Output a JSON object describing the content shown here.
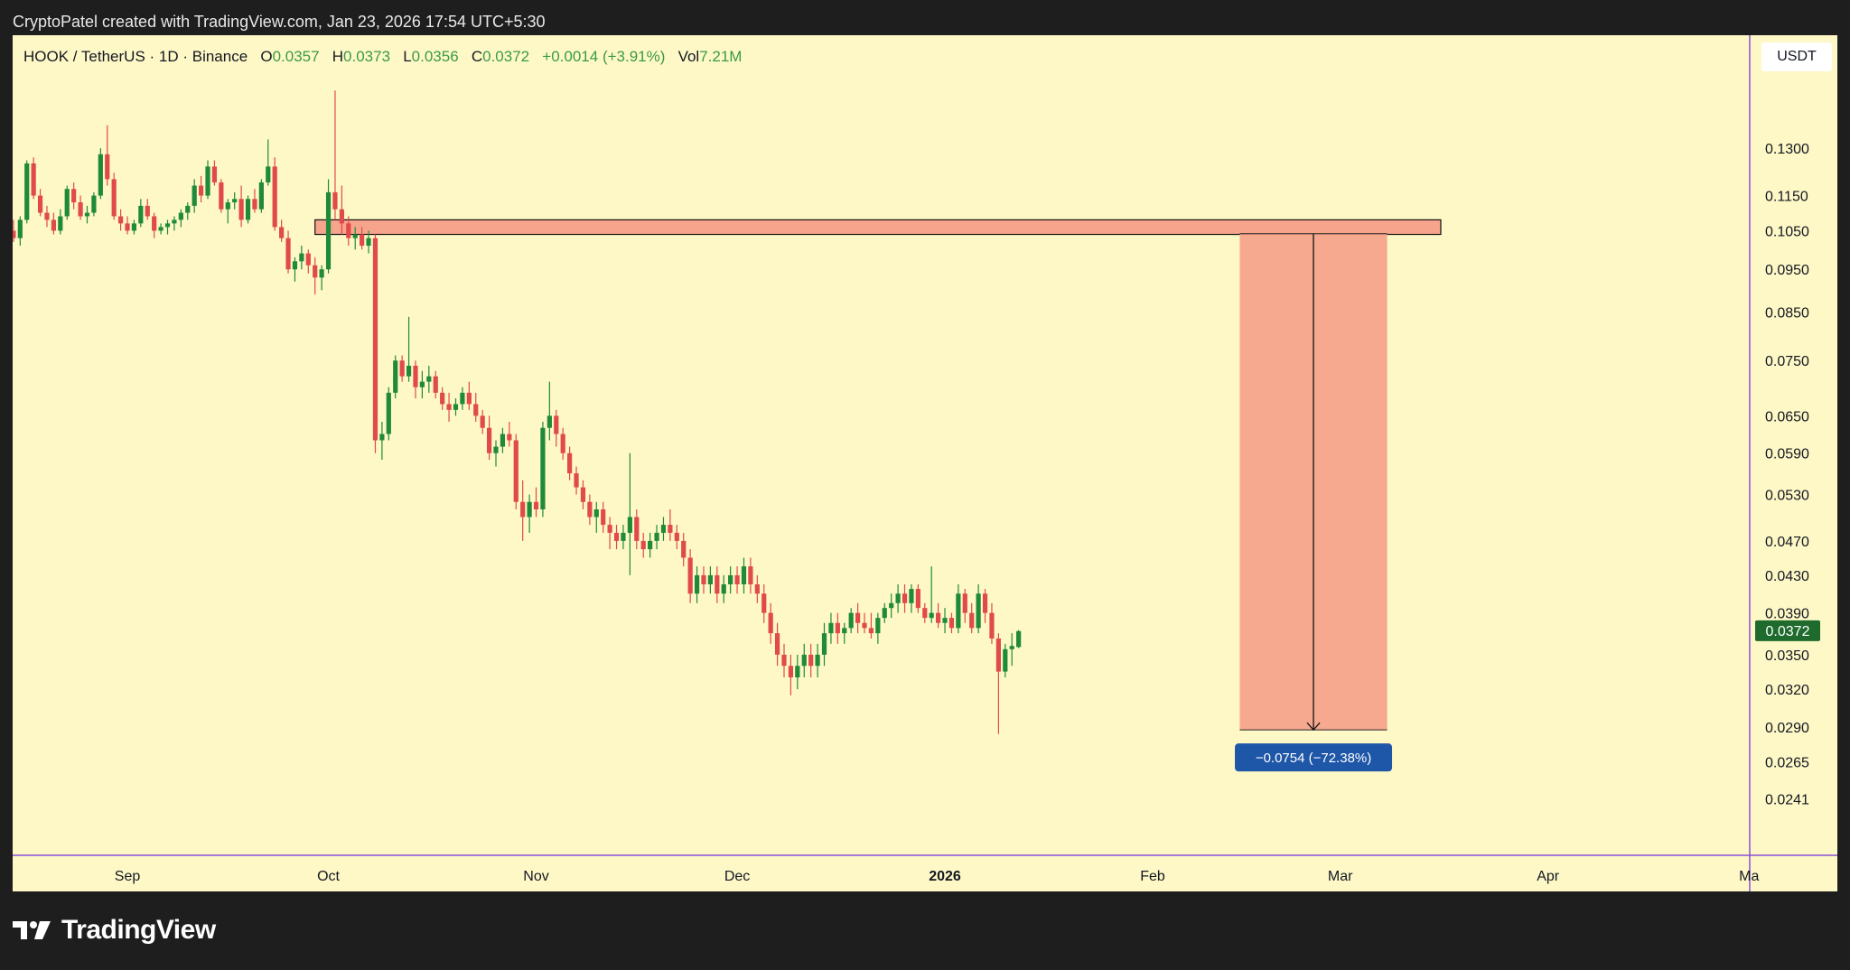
{
  "credit": "CryptoPatel created with TradingView.com, Jan 23, 2026 17:54 UTC+5:30",
  "legend": {
    "symbol": "HOOK / TetherUS · 1D · Binance",
    "open_label": "O",
    "open": "0.0357",
    "high_label": "H",
    "high": "0.0373",
    "low_label": "L",
    "low": "0.0356",
    "close_label": "C",
    "close": "0.0372",
    "change": "+0.0014 (+3.91%)",
    "vol_label": "Vol",
    "vol": "7.21M"
  },
  "unit_button": "USDT",
  "brand": "TradingView",
  "colors": {
    "background": "#fef8c6",
    "up": "#1f8a3a",
    "down": "#e04a4a",
    "zone": "#f7a48c",
    "measure_label_bg": "#1e56a8",
    "last_price_bg": "#1f6b2e"
  },
  "chart_data": {
    "type": "candlestick",
    "symbol": "HOOK / TetherUS",
    "interval": "1D",
    "exchange": "Binance",
    "scale": "log",
    "ylim": [
      0.0228,
      0.1405
    ],
    "y_ticks": [
      "0.1300",
      "0.1150",
      "0.1050",
      "0.0950",
      "0.0850",
      "0.0750",
      "0.0650",
      "0.0590",
      "0.0530",
      "0.0470",
      "0.0430",
      "0.0390",
      "0.0350",
      "0.0320",
      "0.0290",
      "0.0265",
      "0.0241"
    ],
    "x_ticks": [
      {
        "date": "2025-09-01",
        "label": "Sep",
        "bold": false
      },
      {
        "date": "2025-10-01",
        "label": "Oct",
        "bold": false
      },
      {
        "date": "2025-11-01",
        "label": "Nov",
        "bold": false
      },
      {
        "date": "2025-12-01",
        "label": "Dec",
        "bold": false
      },
      {
        "date": "2026-01-01",
        "label": "2026",
        "bold": true
      },
      {
        "date": "2026-02-01",
        "label": "Feb",
        "bold": false
      },
      {
        "date": "2026-03-01",
        "label": "Mar",
        "bold": false
      },
      {
        "date": "2026-04-01",
        "label": "Apr",
        "bold": false
      },
      {
        "date": "2026-05-01",
        "label": "Ma",
        "bold": false
      }
    ],
    "last_price": "0.0372",
    "candle_start_date": "2025-08-08",
    "candles": [
      [
        0.102,
        0.109,
        0.099,
        0.108
      ],
      [
        0.108,
        0.113,
        0.105,
        0.11
      ],
      [
        0.11,
        0.111,
        0.104,
        0.106
      ],
      [
        0.106,
        0.108,
        0.102,
        0.103
      ],
      [
        0.103,
        0.107,
        0.101,
        0.106
      ],
      [
        0.106,
        0.112,
        0.104,
        0.11
      ],
      [
        0.11,
        0.1105,
        0.104,
        0.105
      ],
      [
        0.105,
        0.108,
        0.102,
        0.103
      ],
      [
        0.103,
        0.109,
        0.101,
        0.108
      ],
      [
        0.108,
        0.126,
        0.107,
        0.125
      ],
      [
        0.125,
        0.127,
        0.114,
        0.115
      ],
      [
        0.115,
        0.117,
        0.109,
        0.11
      ],
      [
        0.11,
        0.112,
        0.106,
        0.108
      ],
      [
        0.108,
        0.11,
        0.104,
        0.105
      ],
      [
        0.105,
        0.111,
        0.104,
        0.109
      ],
      [
        0.109,
        0.118,
        0.108,
        0.117
      ],
      [
        0.117,
        0.119,
        0.111,
        0.113
      ],
      [
        0.113,
        0.115,
        0.108,
        0.109
      ],
      [
        0.109,
        0.112,
        0.107,
        0.11
      ],
      [
        0.11,
        0.116,
        0.109,
        0.115
      ],
      [
        0.115,
        0.13,
        0.114,
        0.128
      ],
      [
        0.128,
        0.138,
        0.118,
        0.12
      ],
      [
        0.12,
        0.122,
        0.108,
        0.109
      ],
      [
        0.109,
        0.111,
        0.105,
        0.107
      ],
      [
        0.107,
        0.109,
        0.104,
        0.105
      ],
      [
        0.105,
        0.108,
        0.104,
        0.107
      ],
      [
        0.107,
        0.114,
        0.106,
        0.112
      ],
      [
        0.112,
        0.114,
        0.108,
        0.109
      ],
      [
        0.109,
        0.11,
        0.103,
        0.105
      ],
      [
        0.105,
        0.107,
        0.104,
        0.106
      ],
      [
        0.106,
        0.108,
        0.104,
        0.107
      ],
      [
        0.107,
        0.109,
        0.105,
        0.108
      ],
      [
        0.108,
        0.111,
        0.106,
        0.11
      ],
      [
        0.11,
        0.113,
        0.108,
        0.112
      ],
      [
        0.112,
        0.12,
        0.11,
        0.118
      ],
      [
        0.118,
        0.121,
        0.113,
        0.115
      ],
      [
        0.115,
        0.126,
        0.114,
        0.124
      ],
      [
        0.124,
        0.126,
        0.118,
        0.119
      ],
      [
        0.119,
        0.12,
        0.11,
        0.111
      ],
      [
        0.111,
        0.114,
        0.107,
        0.113
      ],
      [
        0.113,
        0.116,
        0.111,
        0.114
      ],
      [
        0.114,
        0.118,
        0.106,
        0.108
      ],
      [
        0.108,
        0.115,
        0.107,
        0.114
      ],
      [
        0.114,
        0.117,
        0.11,
        0.111
      ],
      [
        0.111,
        0.12,
        0.11,
        0.119
      ],
      [
        0.119,
        0.133,
        0.118,
        0.124
      ],
      [
        0.124,
        0.127,
        0.105,
        0.106
      ],
      [
        0.106,
        0.108,
        0.102,
        0.103
      ],
      [
        0.103,
        0.105,
        0.094,
        0.095
      ],
      [
        0.095,
        0.098,
        0.092,
        0.097
      ],
      [
        0.097,
        0.101,
        0.095,
        0.099
      ],
      [
        0.099,
        0.1,
        0.094,
        0.096
      ],
      [
        0.096,
        0.098,
        0.089,
        0.093
      ],
      [
        0.093,
        0.096,
        0.09,
        0.095
      ],
      [
        0.095,
        0.12,
        0.094,
        0.116
      ],
      [
        0.116,
        0.151,
        0.108,
        0.111
      ],
      [
        0.111,
        0.118,
        0.104,
        0.107
      ],
      [
        0.107,
        0.109,
        0.101,
        0.103
      ],
      [
        0.103,
        0.106,
        0.1,
        0.104
      ],
      [
        0.104,
        0.106,
        0.1,
        0.101
      ],
      [
        0.101,
        0.105,
        0.099,
        0.103
      ],
      [
        0.103,
        0.104,
        0.059,
        0.061
      ],
      [
        0.061,
        0.064,
        0.058,
        0.062
      ],
      [
        0.062,
        0.07,
        0.061,
        0.069
      ],
      [
        0.069,
        0.076,
        0.068,
        0.075
      ],
      [
        0.075,
        0.076,
        0.071,
        0.072
      ],
      [
        0.072,
        0.084,
        0.071,
        0.074
      ],
      [
        0.074,
        0.075,
        0.068,
        0.07
      ],
      [
        0.07,
        0.073,
        0.068,
        0.071
      ],
      [
        0.071,
        0.074,
        0.069,
        0.072
      ],
      [
        0.072,
        0.073,
        0.068,
        0.069
      ],
      [
        0.069,
        0.07,
        0.066,
        0.067
      ],
      [
        0.067,
        0.069,
        0.064,
        0.066
      ],
      [
        0.066,
        0.068,
        0.065,
        0.067
      ],
      [
        0.067,
        0.07,
        0.066,
        0.069
      ],
      [
        0.069,
        0.071,
        0.066,
        0.067
      ],
      [
        0.067,
        0.069,
        0.064,
        0.065
      ],
      [
        0.065,
        0.066,
        0.062,
        0.063
      ],
      [
        0.063,
        0.065,
        0.058,
        0.059
      ],
      [
        0.059,
        0.061,
        0.057,
        0.06
      ],
      [
        0.06,
        0.063,
        0.059,
        0.062
      ],
      [
        0.062,
        0.064,
        0.06,
        0.061
      ],
      [
        0.061,
        0.062,
        0.051,
        0.052
      ],
      [
        0.052,
        0.055,
        0.047,
        0.05
      ],
      [
        0.05,
        0.053,
        0.048,
        0.052
      ],
      [
        0.052,
        0.054,
        0.05,
        0.051
      ],
      [
        0.051,
        0.064,
        0.05,
        0.063
      ],
      [
        0.063,
        0.071,
        0.061,
        0.065
      ],
      [
        0.065,
        0.066,
        0.06,
        0.062
      ],
      [
        0.062,
        0.063,
        0.058,
        0.059
      ],
      [
        0.059,
        0.06,
        0.055,
        0.056
      ],
      [
        0.056,
        0.057,
        0.053,
        0.054
      ],
      [
        0.054,
        0.055,
        0.051,
        0.052
      ],
      [
        0.052,
        0.053,
        0.049,
        0.05
      ],
      [
        0.05,
        0.052,
        0.048,
        0.051
      ],
      [
        0.051,
        0.052,
        0.048,
        0.049
      ],
      [
        0.049,
        0.05,
        0.046,
        0.048
      ],
      [
        0.048,
        0.049,
        0.046,
        0.047
      ],
      [
        0.047,
        0.049,
        0.046,
        0.048
      ],
      [
        0.048,
        0.059,
        0.043,
        0.05
      ],
      [
        0.05,
        0.051,
        0.046,
        0.047
      ],
      [
        0.047,
        0.048,
        0.045,
        0.046
      ],
      [
        0.046,
        0.048,
        0.045,
        0.047
      ],
      [
        0.047,
        0.049,
        0.046,
        0.048
      ],
      [
        0.048,
        0.05,
        0.047,
        0.049
      ],
      [
        0.049,
        0.051,
        0.047,
        0.048
      ],
      [
        0.048,
        0.049,
        0.046,
        0.047
      ],
      [
        0.047,
        0.048,
        0.044,
        0.045
      ],
      [
        0.045,
        0.046,
        0.04,
        0.041
      ],
      [
        0.041,
        0.044,
        0.04,
        0.043
      ],
      [
        0.043,
        0.044,
        0.041,
        0.042
      ],
      [
        0.042,
        0.044,
        0.041,
        0.043
      ],
      [
        0.043,
        0.044,
        0.04,
        0.041
      ],
      [
        0.041,
        0.043,
        0.04,
        0.042
      ],
      [
        0.042,
        0.044,
        0.041,
        0.043
      ],
      [
        0.043,
        0.044,
        0.041,
        0.042
      ],
      [
        0.042,
        0.045,
        0.041,
        0.044
      ],
      [
        0.044,
        0.045,
        0.041,
        0.042
      ],
      [
        0.042,
        0.043,
        0.04,
        0.041
      ],
      [
        0.041,
        0.042,
        0.038,
        0.039
      ],
      [
        0.039,
        0.04,
        0.036,
        0.037
      ],
      [
        0.037,
        0.038,
        0.034,
        0.035
      ],
      [
        0.035,
        0.036,
        0.033,
        0.034
      ],
      [
        0.034,
        0.035,
        0.0315,
        0.033
      ],
      [
        0.033,
        0.035,
        0.032,
        0.034
      ],
      [
        0.034,
        0.036,
        0.033,
        0.035
      ],
      [
        0.035,
        0.036,
        0.033,
        0.034
      ],
      [
        0.034,
        0.036,
        0.033,
        0.035
      ],
      [
        0.035,
        0.038,
        0.034,
        0.037
      ],
      [
        0.037,
        0.039,
        0.036,
        0.038
      ],
      [
        0.038,
        0.039,
        0.036,
        0.037
      ],
      [
        0.037,
        0.038,
        0.036,
        0.0375
      ],
      [
        0.0375,
        0.0395,
        0.037,
        0.039
      ],
      [
        0.039,
        0.04,
        0.037,
        0.038
      ],
      [
        0.038,
        0.039,
        0.037,
        0.0375
      ],
      [
        0.0375,
        0.039,
        0.0365,
        0.037
      ],
      [
        0.037,
        0.039,
        0.036,
        0.0385
      ],
      [
        0.0385,
        0.04,
        0.038,
        0.0395
      ],
      [
        0.0395,
        0.041,
        0.0385,
        0.04
      ],
      [
        0.04,
        0.042,
        0.039,
        0.041
      ],
      [
        0.041,
        0.042,
        0.039,
        0.04
      ],
      [
        0.04,
        0.042,
        0.039,
        0.0415
      ],
      [
        0.0415,
        0.042,
        0.039,
        0.0395
      ],
      [
        0.0395,
        0.04,
        0.038,
        0.0385
      ],
      [
        0.0385,
        0.044,
        0.038,
        0.039
      ],
      [
        0.039,
        0.04,
        0.0375,
        0.038
      ],
      [
        0.038,
        0.0395,
        0.037,
        0.0385
      ],
      [
        0.0385,
        0.039,
        0.037,
        0.0375
      ],
      [
        0.0375,
        0.042,
        0.037,
        0.041
      ],
      [
        0.041,
        0.0415,
        0.038,
        0.039
      ],
      [
        0.039,
        0.04,
        0.037,
        0.0375
      ],
      [
        0.0375,
        0.042,
        0.037,
        0.041
      ],
      [
        0.041,
        0.0415,
        0.038,
        0.039
      ],
      [
        0.039,
        0.04,
        0.036,
        0.0365
      ],
      [
        0.0365,
        0.037,
        0.0285,
        0.0335
      ],
      [
        0.0335,
        0.036,
        0.033,
        0.0355
      ],
      [
        0.0355,
        0.037,
        0.034,
        0.0358
      ],
      [
        0.0357,
        0.0373,
        0.0356,
        0.0372
      ]
    ],
    "resistance_zone": {
      "from_date": "2025-09-29",
      "to_date": "2026-03-16",
      "top": 0.108,
      "bottom": 0.104
    },
    "measurement": {
      "from_date": "2026-02-14",
      "to_date": "2026-03-08",
      "start_price": 0.1042,
      "end_price": 0.0288,
      "label": "−0.0754 (−72.38%)"
    },
    "grid": false,
    "title": "",
    "xlabel": "",
    "ylabel": ""
  }
}
